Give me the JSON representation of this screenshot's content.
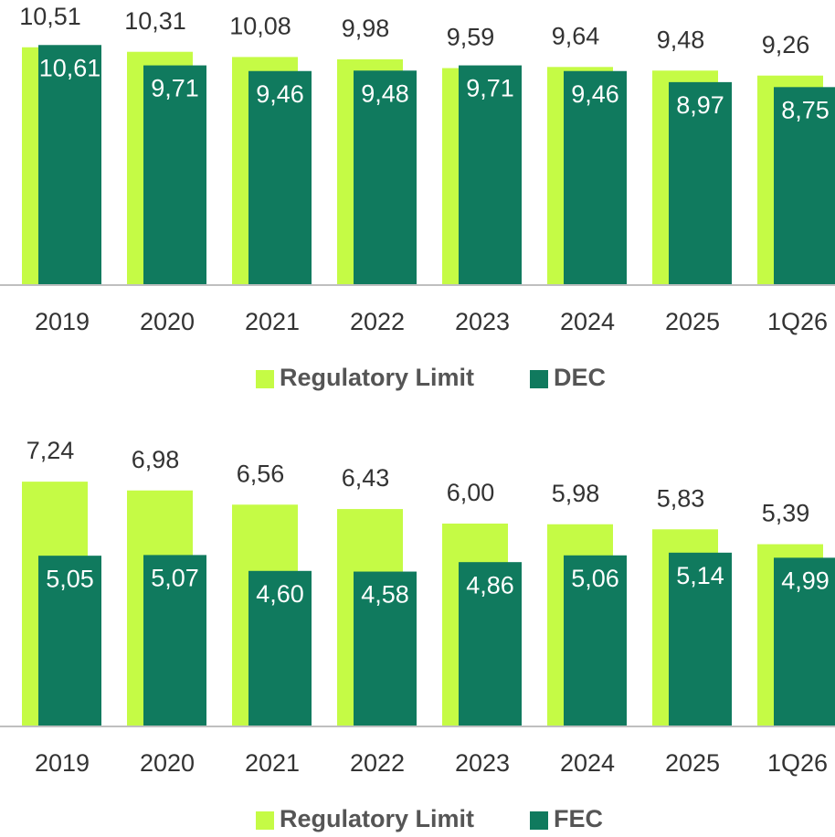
{
  "chart_data": [
    {
      "type": "bar",
      "categories": [
        "2019",
        "2020",
        "2021",
        "2022",
        "2023",
        "2024",
        "2025",
        "1Q26"
      ],
      "series": [
        {
          "name": "Regulatory Limit",
          "color": "#c5fb45",
          "values": [
            10.51,
            10.31,
            10.08,
            9.98,
            9.59,
            9.64,
            9.48,
            9.26
          ],
          "value_labels": [
            "10,51",
            "10,31",
            "10,08",
            "9,98",
            "9,59",
            "9,64",
            "9,48",
            "9,26"
          ]
        },
        {
          "name": "DEC",
          "color": "#107a5e",
          "values": [
            10.61,
            9.71,
            9.46,
            9.48,
            9.71,
            9.46,
            8.97,
            8.75
          ],
          "value_labels": [
            "10,61",
            "9,71",
            "9,46",
            "9,48",
            "9,71",
            "9,46",
            "8,97",
            "8,75"
          ]
        }
      ],
      "ylim": [
        0,
        12.6
      ]
    },
    {
      "type": "bar",
      "categories": [
        "2019",
        "2020",
        "2021",
        "2022",
        "2023",
        "2024",
        "2025",
        "1Q26"
      ],
      "series": [
        {
          "name": "Regulatory Limit",
          "color": "#c5fb45",
          "values": [
            7.24,
            6.98,
            6.56,
            6.43,
            6.0,
            5.98,
            5.83,
            5.39
          ],
          "value_labels": [
            "7,24",
            "6,98",
            "6,56",
            "6,43",
            "6,00",
            "5,98",
            "5,83",
            "5,39"
          ]
        },
        {
          "name": "FEC",
          "color": "#107a5e",
          "values": [
            5.05,
            5.07,
            4.6,
            4.58,
            4.86,
            5.06,
            5.14,
            4.99
          ],
          "value_labels": [
            "5,05",
            "5,07",
            "4,60",
            "4,58",
            "4,86",
            "5,06",
            "5,14",
            "4,99"
          ]
        }
      ],
      "ylim": [
        0,
        9
      ]
    }
  ]
}
